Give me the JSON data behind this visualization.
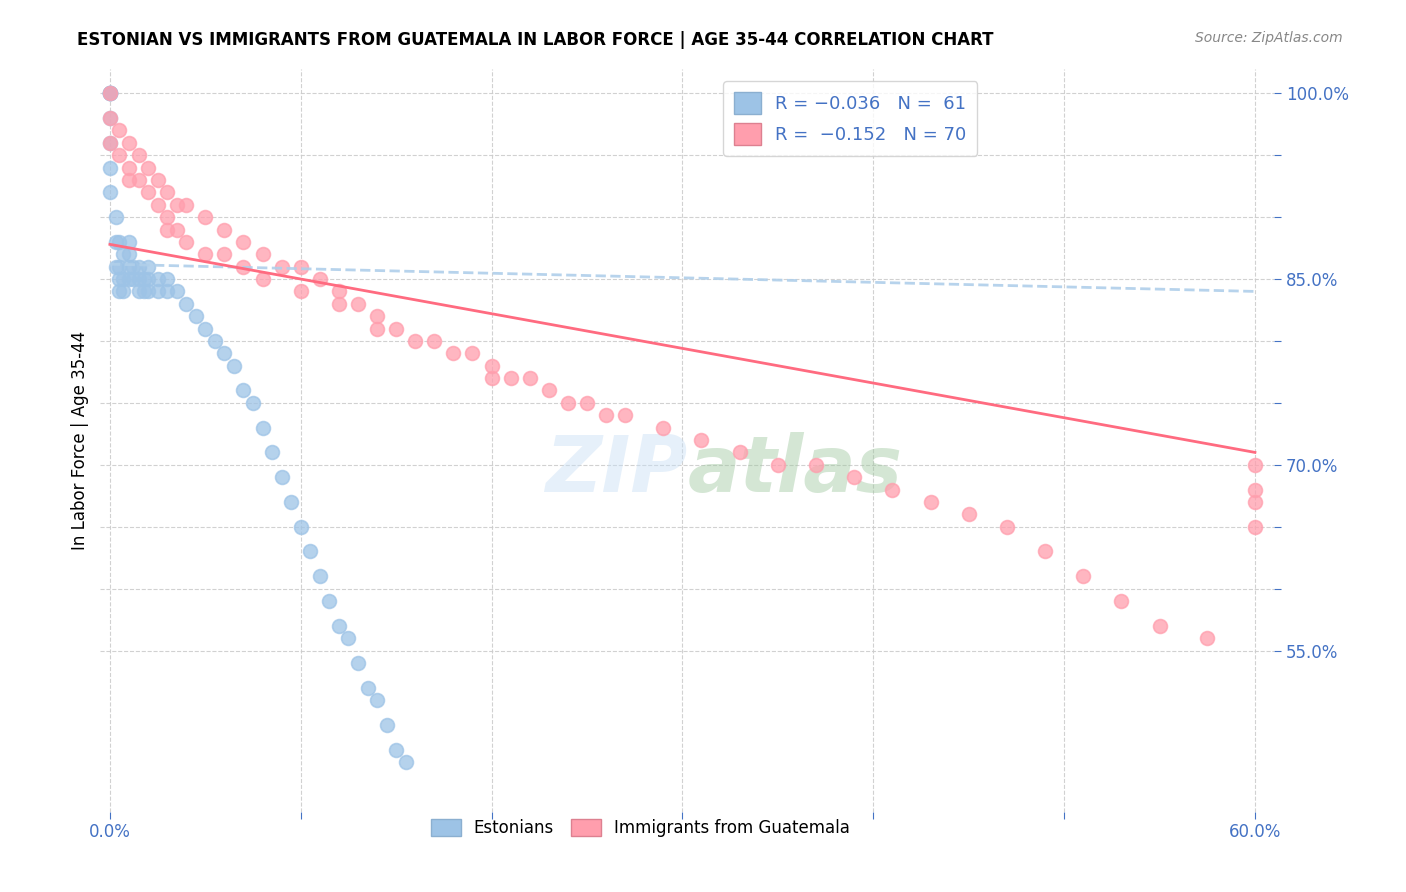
{
  "title": "ESTONIAN VS IMMIGRANTS FROM GUATEMALA IN LABOR FORCE | AGE 35-44 CORRELATION CHART",
  "source": "Source: ZipAtlas.com",
  "ylabel": "In Labor Force | Age 35-44",
  "xmin": 0.0,
  "xmax": 0.6,
  "ymin": 0.42,
  "ymax": 1.02,
  "color_estonian": "#9DC3E6",
  "color_guatemala": "#FF9EAD",
  "color_line_estonian": "#B0CFEA",
  "color_line_guatemala": "#FF6B80",
  "R_estonian": -0.036,
  "N_estonian": 61,
  "R_guatemala": -0.152,
  "N_guatemala": 70,
  "estonian_x": [
    0.0,
    0.0,
    0.0,
    0.0,
    0.0,
    0.0,
    0.0,
    0.0,
    0.003,
    0.003,
    0.003,
    0.005,
    0.005,
    0.005,
    0.005,
    0.007,
    0.007,
    0.007,
    0.01,
    0.01,
    0.01,
    0.01,
    0.012,
    0.012,
    0.015,
    0.015,
    0.015,
    0.018,
    0.018,
    0.02,
    0.02,
    0.02,
    0.025,
    0.025,
    0.03,
    0.03,
    0.035,
    0.04,
    0.045,
    0.05,
    0.055,
    0.06,
    0.065,
    0.07,
    0.075,
    0.08,
    0.085,
    0.09,
    0.095,
    0.1,
    0.105,
    0.11,
    0.115,
    0.12,
    0.125,
    0.13,
    0.135,
    0.14,
    0.145,
    0.15,
    0.155
  ],
  "estonian_y": [
    1.0,
    1.0,
    1.0,
    1.0,
    0.98,
    0.96,
    0.94,
    0.92,
    0.9,
    0.88,
    0.86,
    0.88,
    0.86,
    0.85,
    0.84,
    0.87,
    0.85,
    0.84,
    0.88,
    0.87,
    0.86,
    0.85,
    0.86,
    0.85,
    0.86,
    0.85,
    0.84,
    0.85,
    0.84,
    0.86,
    0.85,
    0.84,
    0.85,
    0.84,
    0.85,
    0.84,
    0.84,
    0.83,
    0.82,
    0.81,
    0.8,
    0.79,
    0.78,
    0.76,
    0.75,
    0.73,
    0.71,
    0.69,
    0.67,
    0.65,
    0.63,
    0.61,
    0.59,
    0.57,
    0.56,
    0.54,
    0.52,
    0.51,
    0.49,
    0.47,
    0.46
  ],
  "guatemala_x": [
    0.0,
    0.0,
    0.0,
    0.005,
    0.005,
    0.01,
    0.01,
    0.01,
    0.015,
    0.015,
    0.02,
    0.02,
    0.025,
    0.025,
    0.03,
    0.03,
    0.03,
    0.035,
    0.035,
    0.04,
    0.04,
    0.05,
    0.05,
    0.06,
    0.06,
    0.07,
    0.07,
    0.08,
    0.08,
    0.09,
    0.1,
    0.1,
    0.11,
    0.12,
    0.12,
    0.13,
    0.14,
    0.14,
    0.15,
    0.16,
    0.17,
    0.18,
    0.19,
    0.2,
    0.2,
    0.21,
    0.22,
    0.23,
    0.24,
    0.25,
    0.26,
    0.27,
    0.29,
    0.31,
    0.33,
    0.35,
    0.37,
    0.39,
    0.41,
    0.43,
    0.45,
    0.47,
    0.49,
    0.51,
    0.53,
    0.55,
    0.575,
    0.6,
    0.6,
    0.6,
    0.6
  ],
  "guatemala_y": [
    1.0,
    0.98,
    0.96,
    0.97,
    0.95,
    0.96,
    0.94,
    0.93,
    0.95,
    0.93,
    0.94,
    0.92,
    0.93,
    0.91,
    0.92,
    0.9,
    0.89,
    0.91,
    0.89,
    0.91,
    0.88,
    0.9,
    0.87,
    0.89,
    0.87,
    0.88,
    0.86,
    0.87,
    0.85,
    0.86,
    0.86,
    0.84,
    0.85,
    0.84,
    0.83,
    0.83,
    0.82,
    0.81,
    0.81,
    0.8,
    0.8,
    0.79,
    0.79,
    0.78,
    0.77,
    0.77,
    0.77,
    0.76,
    0.75,
    0.75,
    0.74,
    0.74,
    0.73,
    0.72,
    0.71,
    0.7,
    0.7,
    0.69,
    0.68,
    0.67,
    0.66,
    0.65,
    0.63,
    0.61,
    0.59,
    0.57,
    0.56,
    0.7,
    0.68,
    0.67,
    0.65
  ]
}
